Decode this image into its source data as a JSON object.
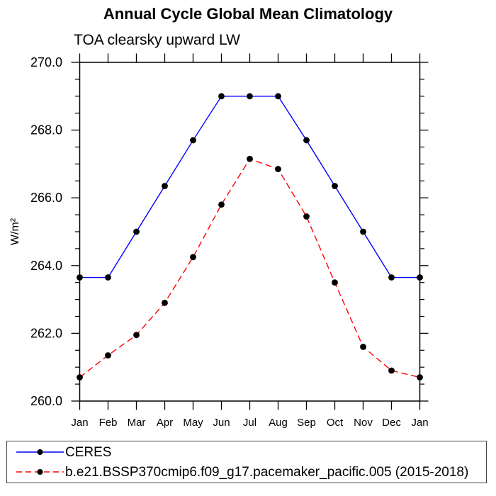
{
  "chart_data": {
    "type": "line",
    "title": "Annual Cycle Global Mean Climatology",
    "subtitle": "TOA clearsky upward LW",
    "ylabel": "W/m²",
    "xlabel": "",
    "categories": [
      "Jan",
      "Feb",
      "Mar",
      "Apr",
      "May",
      "Jun",
      "Jul",
      "Aug",
      "Sep",
      "Oct",
      "Nov",
      "Dec",
      "Jan"
    ],
    "ylim": [
      260.0,
      270.0
    ],
    "ytick_major_step": 2.0,
    "ytick_minor_step": 0.5,
    "ytick_label_format": "one-decimal",
    "ytick_labels": [
      "260.0",
      "262.0",
      "264.0",
      "266.0",
      "268.0",
      "270.0"
    ],
    "grid": false,
    "axis_color": "#000000",
    "legend_position": "bottom-left",
    "series": [
      {
        "name": "CERES",
        "color": "#0000ff",
        "line_style": "solid",
        "marker": "circle",
        "marker_color": "#000000",
        "values": [
          263.65,
          263.65,
          265.0,
          266.35,
          267.7,
          269.0,
          269.0,
          269.0,
          267.7,
          266.35,
          265.0,
          263.65,
          263.65
        ]
      },
      {
        "name": "b.e21.BSSP370cmip6.f09_g17.pacemaker_pacific.005 (2015-2018)",
        "color": "#ff0000",
        "line_style": "dashed",
        "marker": "circle",
        "marker_color": "#000000",
        "values": [
          260.7,
          261.35,
          261.95,
          262.9,
          264.25,
          265.8,
          267.15,
          266.85,
          265.45,
          263.5,
          261.6,
          260.9,
          260.7
        ]
      }
    ]
  }
}
